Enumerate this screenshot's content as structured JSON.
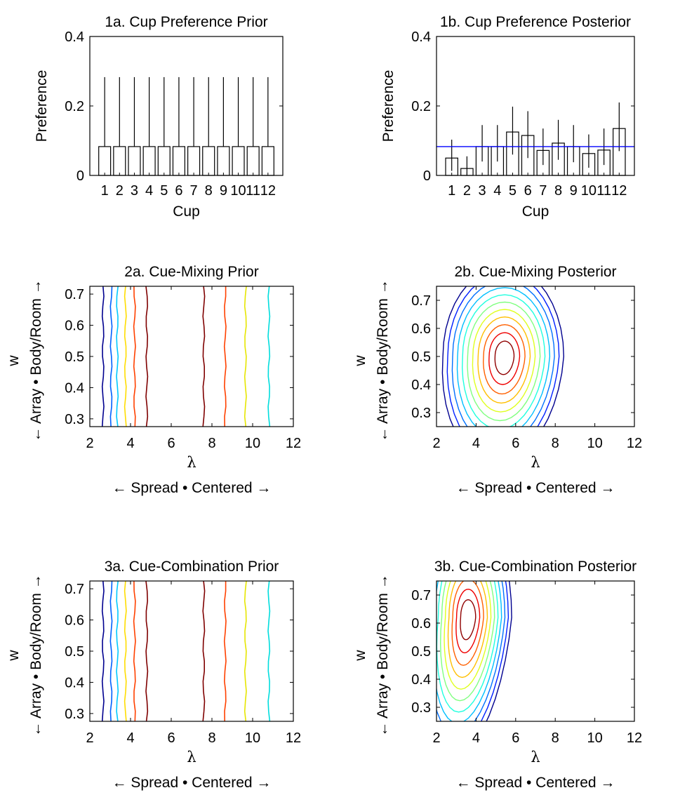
{
  "chart_data": [
    {
      "id": "1a",
      "type": "bar",
      "title": "1a. Cup Preference Prior",
      "xlabel": "Cup",
      "ylabel": "Preference",
      "categories": [
        "1",
        "2",
        "3",
        "4",
        "5",
        "6",
        "7",
        "8",
        "9",
        "10",
        "11",
        "12"
      ],
      "values": [
        0.083,
        0.083,
        0.083,
        0.083,
        0.083,
        0.083,
        0.083,
        0.083,
        0.083,
        0.083,
        0.083,
        0.083
      ],
      "error_upper": [
        0.283,
        0.283,
        0.283,
        0.283,
        0.283,
        0.283,
        0.283,
        0.283,
        0.283,
        0.283,
        0.283,
        0.283
      ],
      "error_lower": [
        0.083,
        0.083,
        0.083,
        0.083,
        0.083,
        0.083,
        0.083,
        0.083,
        0.083,
        0.083,
        0.083,
        0.083
      ],
      "ylim": [
        0,
        0.4
      ],
      "yticks": [
        "0",
        "0.2",
        "0.4"
      ]
    },
    {
      "id": "1b",
      "type": "bar",
      "title": "1b. Cup Preference Posterior",
      "xlabel": "Cup",
      "ylabel": "Preference",
      "categories": [
        "1",
        "2",
        "3",
        "4",
        "5",
        "6",
        "7",
        "8",
        "9",
        "10",
        "11",
        "12"
      ],
      "values": [
        0.05,
        0.02,
        0.083,
        0.083,
        0.125,
        0.115,
        0.072,
        0.093,
        0.083,
        0.063,
        0.073,
        0.135
      ],
      "error_upper": [
        0.103,
        0.055,
        0.145,
        0.145,
        0.198,
        0.185,
        0.135,
        0.16,
        0.145,
        0.118,
        0.135,
        0.21
      ],
      "error_lower": [
        0.013,
        0.0,
        0.04,
        0.04,
        0.06,
        0.05,
        0.03,
        0.045,
        0.038,
        0.022,
        0.03,
        0.07
      ],
      "reference_line": 0.083,
      "reference_color": "#0000ff",
      "ylim": [
        0,
        0.4
      ],
      "yticks": [
        "0",
        "0.2",
        "0.4"
      ]
    },
    {
      "id": "2a",
      "type": "contour",
      "title": "2a. Cue-Mixing Prior",
      "xlabel": "λ",
      "xlabel2": "← Spread • Centered →",
      "ylabel": "w",
      "ylabel2": "← Array • Body/Room →",
      "xlim": [
        2,
        12
      ],
      "ylim": [
        0.275,
        0.725
      ],
      "xticks": [
        "2",
        "4",
        "6",
        "8",
        "10",
        "12"
      ],
      "yticks": [
        "0.3",
        "0.4",
        "0.5",
        "0.6",
        "0.7"
      ],
      "vertical_levels": [
        {
          "x": 2.65,
          "color": "#00008f"
        },
        {
          "x": 3.05,
          "color": "#0060ff"
        },
        {
          "x": 3.35,
          "color": "#00c8ff"
        },
        {
          "x": 3.75,
          "color": "#ffdd00"
        },
        {
          "x": 4.2,
          "color": "#ff4000"
        },
        {
          "x": 4.8,
          "color": "#7f0000"
        },
        {
          "x": 7.6,
          "color": "#7f0000"
        },
        {
          "x": 8.65,
          "color": "#ff4000"
        },
        {
          "x": 9.65,
          "color": "#e6e600"
        },
        {
          "x": 10.8,
          "color": "#00dddd"
        }
      ]
    },
    {
      "id": "2b",
      "type": "contour",
      "title": "2b. Cue-Mixing Posterior",
      "xlabel": "λ",
      "xlabel2": "← Spread • Centered →",
      "ylabel": "w",
      "ylabel2": "← Array • Body/Room →",
      "xlim": [
        2,
        12
      ],
      "ylim": [
        0.25,
        0.75
      ],
      "xticks": [
        "2",
        "4",
        "6",
        "8",
        "10",
        "12"
      ],
      "yticks": [
        "0.3",
        "0.4",
        "0.5",
        "0.6",
        "0.7"
      ],
      "peak": [
        5.45,
        0.5
      ],
      "colors": [
        "#00008f",
        "#0020ff",
        "#0070ff",
        "#00bfff",
        "#20ffdf",
        "#80ff80",
        "#dfff20",
        "#ffbf00",
        "#ff6000",
        "#ef0000",
        "#8f0000"
      ]
    },
    {
      "id": "3a",
      "type": "contour",
      "title": "3a. Cue-Combination Prior",
      "xlabel": "λ",
      "xlabel2": "← Spread • Centered →",
      "ylabel": "w",
      "ylabel2": "← Array • Body/Room →",
      "xlim": [
        2,
        12
      ],
      "ylim": [
        0.275,
        0.725
      ],
      "xticks": [
        "2",
        "4",
        "6",
        "8",
        "10",
        "12"
      ],
      "yticks": [
        "0.3",
        "0.4",
        "0.5",
        "0.6",
        "0.7"
      ],
      "vertical_levels": [
        {
          "x": 2.65,
          "color": "#00008f"
        },
        {
          "x": 3.05,
          "color": "#0060ff"
        },
        {
          "x": 3.35,
          "color": "#00c8ff"
        },
        {
          "x": 3.75,
          "color": "#ffdd00"
        },
        {
          "x": 4.2,
          "color": "#ff4000"
        },
        {
          "x": 4.8,
          "color": "#7f0000"
        },
        {
          "x": 7.6,
          "color": "#7f0000"
        },
        {
          "x": 8.65,
          "color": "#ff4000"
        },
        {
          "x": 9.65,
          "color": "#e6e600"
        },
        {
          "x": 10.8,
          "color": "#00dddd"
        }
      ]
    },
    {
      "id": "3b",
      "type": "contour",
      "title": "3b. Cue-Combination Posterior",
      "xlabel": "λ",
      "xlabel2": "← Spread • Centered →",
      "ylabel": "w",
      "ylabel2": "← Array • Body/Room →",
      "xlim": [
        2,
        12
      ],
      "ylim": [
        0.25,
        0.75
      ],
      "xticks": [
        "2",
        "4",
        "6",
        "8",
        "10",
        "12"
      ],
      "yticks": [
        "0.3",
        "0.4",
        "0.5",
        "0.6",
        "0.7"
      ],
      "peak": [
        3.6,
        0.62
      ],
      "colors": [
        "#00008f",
        "#0020ff",
        "#0070ff",
        "#00bfff",
        "#20ffdf",
        "#80ff80",
        "#dfff20",
        "#ffbf00",
        "#ff6000",
        "#ef0000",
        "#8f0000"
      ]
    }
  ]
}
